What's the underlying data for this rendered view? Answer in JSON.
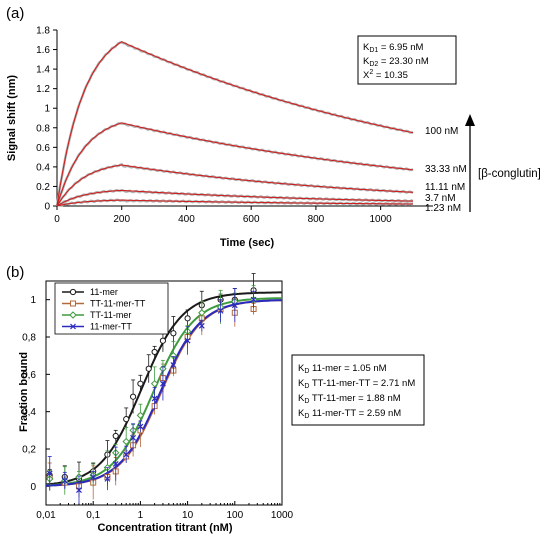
{
  "panel_a": {
    "label": "(a)",
    "stats_box": {
      "lines": [
        {
          "main": "K",
          "sub": "D1",
          "rest": " = 6.95 nM"
        },
        {
          "main": "K",
          "sub": "D2",
          "rest": " = 23.30 nM"
        },
        {
          "main": "X",
          "sup": "2",
          "rest": " = 10.35"
        }
      ]
    },
    "analyte_label": "[β-conglutin]",
    "colors": {
      "fit": "#cc2222",
      "data": "#b0b0b0",
      "text": "#000000"
    }
  },
  "panel_b": {
    "label": "(b)",
    "stats_box": {
      "lines": [
        {
          "main": "K",
          "sub": "D",
          "rest": " 11-mer = 1.05 nM"
        },
        {
          "main": "K",
          "sub": "D",
          "rest": " TT-11-mer-TT = 2.71 nM"
        },
        {
          "main": "K",
          "sub": "D",
          "rest": " TT-11-mer = 1.88 nM"
        },
        {
          "main": "K",
          "sub": "D",
          "rest": " 11-mer-TT = 2.59 nM"
        }
      ]
    }
  },
  "chart_data": [
    {
      "type": "line",
      "xlabel": "Time (sec)",
      "ylabel": "Signal shift (nm)",
      "xlim": [
        0,
        1100
      ],
      "ylim": [
        0,
        1.8
      ],
      "x_ticks": [
        0,
        200,
        400,
        600,
        800,
        1000
      ],
      "y_ticks": [
        0,
        0.2,
        0.4,
        0.6,
        0.8,
        1.0,
        1.2,
        1.4,
        1.6,
        1.8
      ],
      "y_tick_labels": [
        "0",
        "0.2",
        "0.4",
        "0.6",
        "0.8",
        "1",
        "1.2",
        "1.4",
        "1.6",
        "1.8"
      ],
      "association_end": 200,
      "grid": false,
      "series": [
        {
          "name": "100 nM",
          "peak": 1.68,
          "end": 0.75
        },
        {
          "name": "33.33 nM",
          "peak": 0.85,
          "end": 0.37
        },
        {
          "name": "11.11 nM",
          "peak": 0.42,
          "end": 0.14
        },
        {
          "name": "3.7 nM",
          "peak": 0.16,
          "end": 0.05
        },
        {
          "name": "1.23 nM",
          "peak": 0.06,
          "end": 0.02
        }
      ]
    },
    {
      "type": "scatter",
      "xlabel": "Concentration titrant (nM)",
      "ylabel": "Fraction bound",
      "x_scale": "log",
      "xlim": [
        0.01,
        1000
      ],
      "ylim": [
        -0.1,
        1.1
      ],
      "x_ticks": [
        0.01,
        0.1,
        1,
        10,
        100,
        1000
      ],
      "x_tick_labels": [
        "0,01",
        "0,1",
        "1",
        "10",
        "100",
        "1000"
      ],
      "y_ticks": [
        0,
        0.2,
        0.4,
        0.6,
        0.8,
        1
      ],
      "y_tick_labels": [
        "0",
        "0,2",
        "0,4",
        "0,6",
        "0,8",
        "1"
      ],
      "legend_position": "top-left",
      "grid": false,
      "series": [
        {
          "name": "11-mer",
          "color": "#1a1a1a",
          "marker": "circle",
          "kd": 1.05,
          "top": 1.04,
          "points": [
            [
              0.012,
              0.06
            ],
            [
              0.025,
              0.05
            ],
            [
              0.05,
              0.04
            ],
            [
              0.1,
              0.08
            ],
            [
              0.2,
              0.17
            ],
            [
              0.3,
              0.27
            ],
            [
              0.5,
              0.36
            ],
            [
              0.7,
              0.48
            ],
            [
              1,
              0.55
            ],
            [
              1.5,
              0.63
            ],
            [
              2,
              0.72
            ],
            [
              3,
              0.78
            ],
            [
              5,
              0.82
            ],
            [
              10,
              0.9
            ],
            [
              20,
              0.97
            ],
            [
              50,
              1.0
            ],
            [
              100,
              1.0
            ],
            [
              250,
              1.05
            ]
          ]
        },
        {
          "name": "TT-11-mer-TT",
          "color": "#b46a3c",
          "marker": "square",
          "kd": 2.71,
          "top": 1.0,
          "points": [
            [
              0.012,
              0.05
            ],
            [
              0.025,
              0.02
            ],
            [
              0.05,
              0.0
            ],
            [
              0.1,
              0.02
            ],
            [
              0.2,
              0.05
            ],
            [
              0.3,
              0.08
            ],
            [
              0.5,
              0.16
            ],
            [
              0.7,
              0.22
            ],
            [
              1,
              0.3
            ],
            [
              2,
              0.43
            ],
            [
              3,
              0.58
            ],
            [
              5,
              0.62
            ],
            [
              10,
              0.8
            ],
            [
              20,
              0.9
            ],
            [
              50,
              0.95
            ],
            [
              100,
              0.93
            ],
            [
              250,
              0.95
            ]
          ]
        },
        {
          "name": "TT-11-mer",
          "color": "#3f9b3f",
          "marker": "diamond",
          "kd": 1.88,
          "top": 1.01,
          "points": [
            [
              0.012,
              0.04
            ],
            [
              0.025,
              0.03
            ],
            [
              0.05,
              0.05
            ],
            [
              0.1,
              0.06
            ],
            [
              0.2,
              0.1
            ],
            [
              0.3,
              0.18
            ],
            [
              0.5,
              0.24
            ],
            [
              0.7,
              0.3
            ],
            [
              1,
              0.38
            ],
            [
              2,
              0.55
            ],
            [
              3,
              0.63
            ],
            [
              5,
              0.7
            ],
            [
              10,
              0.83
            ],
            [
              20,
              0.93
            ],
            [
              50,
              0.96
            ],
            [
              100,
              0.99
            ],
            [
              250,
              1.0
            ]
          ]
        },
        {
          "name": "11-mer-TT",
          "color": "#2a2ac0",
          "marker": "cross",
          "kd": 2.59,
          "top": 1.0,
          "points": [
            [
              0.012,
              0.07
            ],
            [
              0.025,
              0.03
            ],
            [
              0.05,
              -0.02
            ],
            [
              0.1,
              0.05
            ],
            [
              0.2,
              0.04
            ],
            [
              0.3,
              0.12
            ],
            [
              0.5,
              0.17
            ],
            [
              0.7,
              0.26
            ],
            [
              1,
              0.32
            ],
            [
              2,
              0.47
            ],
            [
              3,
              0.55
            ],
            [
              5,
              0.65
            ],
            [
              10,
              0.78
            ],
            [
              20,
              0.86
            ],
            [
              50,
              0.94
            ],
            [
              100,
              0.97
            ],
            [
              250,
              1.0
            ]
          ]
        }
      ]
    }
  ]
}
